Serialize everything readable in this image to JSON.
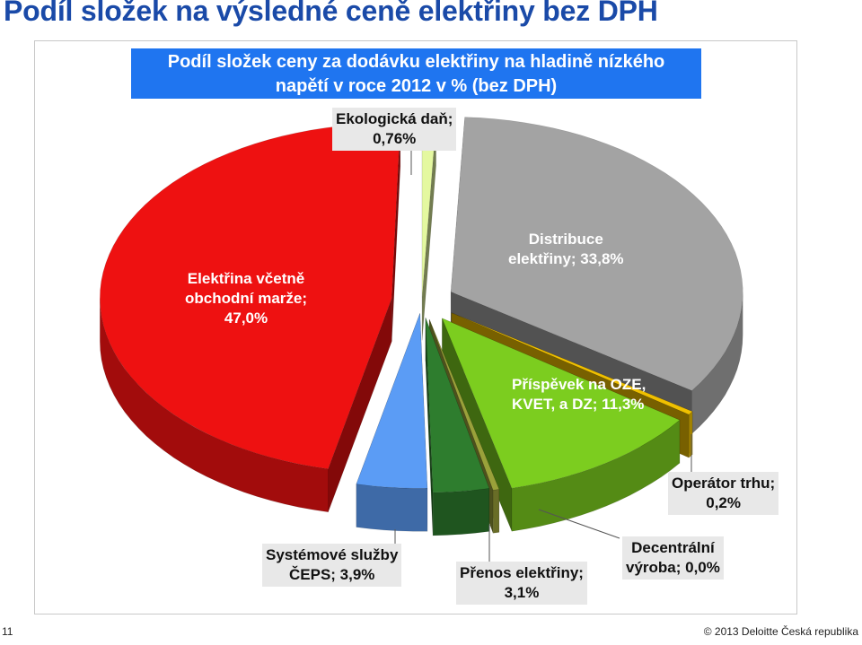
{
  "slide": {
    "title": "Podíl složek na výsledné ceně elektřiny bez DPH",
    "page_number": "11",
    "copyright": "© 2013 Deloitte Česká republika"
  },
  "chart_data": {
    "type": "pie",
    "title_lines": [
      "Podíl složek ceny za dodávku elektřiny na hladině nízkého",
      "napětí v roce 2012 v % (bez DPH)"
    ],
    "unit": "%",
    "slices": [
      {
        "key": "eko",
        "label_lines": [
          "Ekologická daň;",
          "0,76%"
        ],
        "value": 0.76,
        "color": "#e4f8a0"
      },
      {
        "key": "dist",
        "label_lines": [
          "Distribuce",
          "elektřiny; 33,8%"
        ],
        "value": 33.8,
        "color": "#a3a3a3"
      },
      {
        "key": "ote",
        "label_lines": [
          "Operátor trhu;",
          "0,2%"
        ],
        "value": 0.2,
        "color": "#f0c000"
      },
      {
        "key": "oze",
        "label_lines": [
          "Příspěvek na OZE,",
          "KVET, a DZ; 11,3%"
        ],
        "value": 11.3,
        "color": "#7ccd1f"
      },
      {
        "key": "dec",
        "label_lines": [
          "Decentrální",
          "výroba; 0,0%"
        ],
        "value": 0.0,
        "color": "#9aa13a"
      },
      {
        "key": "pre",
        "label_lines": [
          "Přenos elektřiny;",
          "3,1%"
        ],
        "value": 3.1,
        "color": "#2e7d2e"
      },
      {
        "key": "sys",
        "label_lines": [
          "Systémové služby",
          "ČEPS; 3,9%"
        ],
        "value": 3.9,
        "color": "#5b9cf5"
      },
      {
        "key": "ele",
        "label_lines": [
          "Elektřina včetně",
          "obchodní marže;",
          "47,0%"
        ],
        "value": 47.0,
        "color": "#ee1111"
      }
    ],
    "legend": "none"
  }
}
